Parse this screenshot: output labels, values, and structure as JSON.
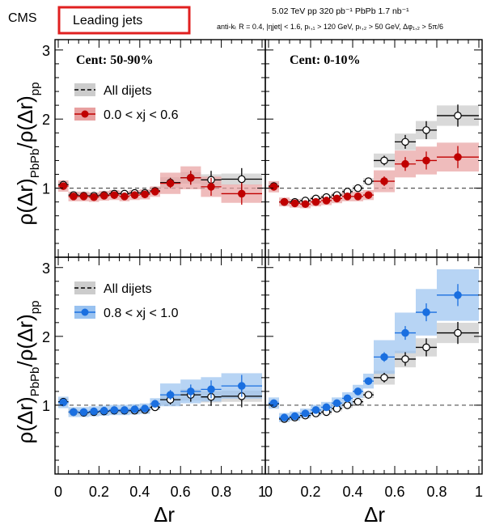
{
  "header": {
    "experiment": "CMS",
    "tag": "Leading jets",
    "tag_color": "#e02020",
    "energy_line": "5.02 TeV   pp 320 pb⁻¹   PbPb 1.7 nb⁻¹",
    "cuts_line": "anti-kₜ R = 0.4, |ηjet| < 1.6, pₜ,₁ > 120 GeV, pₜ,₂ > 50 GeV, Δφ₁,₂ > 5π/6"
  },
  "colors": {
    "red": "#c00000",
    "red_band": "#e8a0a0",
    "blue": "#1a6fe0",
    "blue_band": "#99c2f0",
    "gray_band": "#cccccc",
    "dashed_line": "#555555"
  },
  "chart_data": [
    {
      "type": "scatter",
      "panel": "top-left",
      "centrality_label": "Cent: 50-90%",
      "xlim": [
        0,
        1
      ],
      "ylim": [
        0,
        3
      ],
      "xlabel": "Δr",
      "ylabel": "ρ(Δr)PbPb/ρ(Δr)pp",
      "legend": [
        "All dijets",
        "0.0 < xj < 0.6"
      ],
      "x_edges": [
        0,
        0.05,
        0.1,
        0.15,
        0.2,
        0.25,
        0.3,
        0.35,
        0.4,
        0.45,
        0.5,
        0.6,
        0.7,
        0.8,
        1.0
      ],
      "series": [
        {
          "name": "All dijets",
          "style": "open",
          "values": [
            1.05,
            0.9,
            0.89,
            0.89,
            0.9,
            0.92,
            0.92,
            0.93,
            0.93,
            0.96,
            1.08,
            1.15,
            1.12,
            1.13
          ]
        },
        {
          "name": "0.0 < xj < 0.6",
          "style": "red",
          "values": [
            1.03,
            0.88,
            0.88,
            0.87,
            0.89,
            0.9,
            0.88,
            0.9,
            0.91,
            0.95,
            1.07,
            1.15,
            1.02,
            0.92
          ]
        }
      ]
    },
    {
      "type": "scatter",
      "panel": "top-right",
      "centrality_label": "Cent: 0-10%",
      "xlim": [
        0,
        1
      ],
      "ylim": [
        0,
        3
      ],
      "x_edges": [
        0,
        0.05,
        0.1,
        0.15,
        0.2,
        0.25,
        0.3,
        0.35,
        0.4,
        0.45,
        0.5,
        0.6,
        0.7,
        0.8,
        1.0
      ],
      "series": [
        {
          "name": "All dijets",
          "style": "open",
          "values": [
            1.03,
            0.8,
            0.8,
            0.82,
            0.85,
            0.87,
            0.9,
            0.95,
            1.0,
            1.1,
            1.4,
            1.67,
            1.84,
            2.05
          ]
        },
        {
          "name": "0.0 < xj < 0.6",
          "style": "red",
          "values": [
            1.02,
            0.8,
            0.78,
            0.77,
            0.8,
            0.82,
            0.85,
            0.88,
            0.88,
            0.9,
            1.1,
            1.35,
            1.4,
            1.45
          ]
        }
      ]
    },
    {
      "type": "scatter",
      "panel": "bottom-left",
      "xlim": [
        0,
        1
      ],
      "ylim": [
        0,
        3
      ],
      "legend": [
        "All dijets",
        "0.8 < xj < 1.0"
      ],
      "x_edges": [
        0,
        0.05,
        0.1,
        0.15,
        0.2,
        0.25,
        0.3,
        0.35,
        0.4,
        0.45,
        0.5,
        0.6,
        0.7,
        0.8,
        1.0
      ],
      "series": [
        {
          "name": "All dijets",
          "style": "open",
          "values": [
            1.05,
            0.9,
            0.89,
            0.9,
            0.91,
            0.92,
            0.92,
            0.92,
            0.93,
            0.97,
            1.08,
            1.15,
            1.12,
            1.13
          ]
        },
        {
          "name": "0.8 < xj < 1.0",
          "style": "blue",
          "values": [
            1.04,
            0.9,
            0.9,
            0.91,
            0.92,
            0.93,
            0.93,
            0.94,
            0.95,
            1.02,
            1.15,
            1.2,
            1.23,
            1.28
          ]
        }
      ]
    },
    {
      "type": "scatter",
      "panel": "bottom-right",
      "xlim": [
        0,
        1
      ],
      "ylim": [
        0,
        3
      ],
      "x_edges": [
        0,
        0.05,
        0.1,
        0.15,
        0.2,
        0.25,
        0.3,
        0.35,
        0.4,
        0.45,
        0.5,
        0.6,
        0.7,
        0.8,
        1.0
      ],
      "series": [
        {
          "name": "All dijets",
          "style": "open",
          "values": [
            1.02,
            0.8,
            0.82,
            0.85,
            0.88,
            0.9,
            0.95,
            1.0,
            1.05,
            1.15,
            1.4,
            1.67,
            1.84,
            2.05
          ]
        },
        {
          "name": "0.8 < xj < 1.0",
          "style": "blue",
          "values": [
            1.03,
            0.82,
            0.84,
            0.88,
            0.93,
            0.97,
            1.03,
            1.1,
            1.2,
            1.35,
            1.7,
            2.05,
            2.35,
            2.6
          ]
        }
      ]
    }
  ],
  "axes": {
    "y_ticks": [
      "1",
      "2",
      "3"
    ],
    "x_ticks": [
      "0",
      "0.2",
      "0.4",
      "0.6",
      "0.8",
      "1"
    ],
    "ylabel_main": "ρ(Δr)",
    "ylabel_sub1": "PbPb",
    "ylabel_slash": "/ρ(Δr)",
    "ylabel_sub2": "pp",
    "xlabel": "Δr"
  }
}
